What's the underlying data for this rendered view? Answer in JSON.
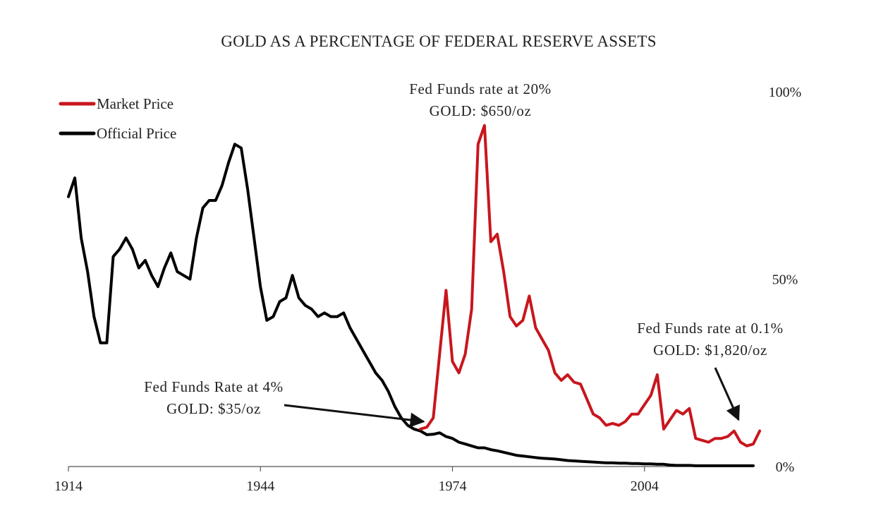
{
  "chart_data": {
    "type": "line",
    "title": "GOLD AS A PERCENTAGE OF FEDERAL RESERVE ASSETS",
    "xlim": [
      1914,
      2021
    ],
    "ylim": [
      0,
      100
    ],
    "x_ticks": [
      1914,
      1944,
      1974,
      2004
    ],
    "x_tick_labels": [
      "1914",
      "1944",
      "1974",
      "2004"
    ],
    "y_ticks": [
      0,
      50,
      100
    ],
    "y_tick_labels": [
      "0%",
      "50%",
      "100%"
    ],
    "y_axis_side": "right",
    "grid": false,
    "legend_position": "top-left",
    "series": [
      {
        "name": "Official Price",
        "color": "#000000",
        "points": [
          [
            1914,
            72
          ],
          [
            1915,
            77
          ],
          [
            1916,
            61
          ],
          [
            1917,
            52
          ],
          [
            1918,
            40
          ],
          [
            1919,
            33
          ],
          [
            1920,
            33
          ],
          [
            1921,
            56
          ],
          [
            1922,
            58
          ],
          [
            1923,
            61
          ],
          [
            1924,
            58
          ],
          [
            1925,
            53
          ],
          [
            1926,
            55
          ],
          [
            1927,
            51
          ],
          [
            1928,
            48
          ],
          [
            1929,
            53
          ],
          [
            1930,
            57
          ],
          [
            1931,
            52
          ],
          [
            1932,
            51
          ],
          [
            1933,
            50
          ],
          [
            1934,
            61
          ],
          [
            1935,
            69
          ],
          [
            1936,
            71
          ],
          [
            1937,
            71
          ],
          [
            1938,
            75
          ],
          [
            1939,
            81
          ],
          [
            1940,
            86
          ],
          [
            1941,
            85
          ],
          [
            1942,
            74
          ],
          [
            1943,
            61
          ],
          [
            1944,
            48
          ],
          [
            1945,
            39
          ],
          [
            1946,
            40
          ],
          [
            1947,
            44
          ],
          [
            1948,
            45
          ],
          [
            1949,
            51
          ],
          [
            1950,
            45
          ],
          [
            1951,
            43
          ],
          [
            1952,
            42
          ],
          [
            1953,
            40
          ],
          [
            1954,
            41
          ],
          [
            1955,
            40
          ],
          [
            1956,
            40
          ],
          [
            1957,
            41
          ],
          [
            1958,
            37
          ],
          [
            1959,
            34
          ],
          [
            1960,
            31
          ],
          [
            1961,
            28
          ],
          [
            1962,
            25
          ],
          [
            1963,
            23
          ],
          [
            1964,
            20
          ],
          [
            1965,
            16
          ],
          [
            1966,
            13
          ],
          [
            1967,
            11
          ],
          [
            1968,
            10
          ],
          [
            1969,
            9.5
          ],
          [
            1970,
            8.5
          ],
          [
            1971,
            8.6
          ],
          [
            1972,
            9
          ],
          [
            1973,
            8
          ],
          [
            1974,
            7.5
          ],
          [
            1975,
            6.5
          ],
          [
            1976,
            6
          ],
          [
            1977,
            5.5
          ],
          [
            1978,
            5
          ],
          [
            1979,
            5
          ],
          [
            1980,
            4.5
          ],
          [
            1981,
            4.2
          ],
          [
            1982,
            3.8
          ],
          [
            1983,
            3.4
          ],
          [
            1984,
            3.0
          ],
          [
            1985,
            2.8
          ],
          [
            1986,
            2.6
          ],
          [
            1987,
            2.4
          ],
          [
            1988,
            2.2
          ],
          [
            1989,
            2.1
          ],
          [
            1990,
            2.0
          ],
          [
            1991,
            1.8
          ],
          [
            1992,
            1.6
          ],
          [
            1993,
            1.5
          ],
          [
            1994,
            1.4
          ],
          [
            1995,
            1.3
          ],
          [
            1996,
            1.2
          ],
          [
            1997,
            1.1
          ],
          [
            1998,
            1.0
          ],
          [
            1999,
            1.0
          ],
          [
            2000,
            0.9
          ],
          [
            2001,
            0.9
          ],
          [
            2002,
            0.8
          ],
          [
            2003,
            0.8
          ],
          [
            2004,
            0.7
          ],
          [
            2005,
            0.7
          ],
          [
            2006,
            0.6
          ],
          [
            2007,
            0.6
          ],
          [
            2008,
            0.4
          ],
          [
            2009,
            0.3
          ],
          [
            2010,
            0.3
          ],
          [
            2011,
            0.3
          ],
          [
            2012,
            0.2
          ],
          [
            2013,
            0.2
          ],
          [
            2014,
            0.2
          ],
          [
            2015,
            0.2
          ],
          [
            2016,
            0.2
          ],
          [
            2017,
            0.2
          ],
          [
            2018,
            0.2
          ],
          [
            2019,
            0.2
          ],
          [
            2020,
            0.2
          ],
          [
            2021,
            0.2
          ]
        ]
      },
      {
        "name": "Market Price",
        "color": "#c8161d",
        "points": [
          [
            1969,
            10
          ],
          [
            1970,
            10.5
          ],
          [
            1971,
            13
          ],
          [
            1972,
            30
          ],
          [
            1973,
            47
          ],
          [
            1974,
            28
          ],
          [
            1975,
            25
          ],
          [
            1976,
            30
          ],
          [
            1977,
            42
          ],
          [
            1978,
            86
          ],
          [
            1979,
            91
          ],
          [
            1980,
            60
          ],
          [
            1981,
            62
          ],
          [
            1982,
            52
          ],
          [
            1983,
            40
          ],
          [
            1984,
            37.5
          ],
          [
            1985,
            39
          ],
          [
            1986,
            45.5
          ],
          [
            1987,
            37
          ],
          [
            1988,
            34
          ],
          [
            1989,
            31
          ],
          [
            1990,
            25
          ],
          [
            1991,
            23
          ],
          [
            1992,
            24.5
          ],
          [
            1993,
            22.5
          ],
          [
            1994,
            22
          ],
          [
            1995,
            18
          ],
          [
            1996,
            14
          ],
          [
            1997,
            13
          ],
          [
            1998,
            11
          ],
          [
            1999,
            11.5
          ],
          [
            2000,
            11
          ],
          [
            2001,
            12
          ],
          [
            2002,
            14
          ],
          [
            2003,
            14
          ],
          [
            2004,
            16.5
          ],
          [
            2005,
            19
          ],
          [
            2006,
            24.5
          ],
          [
            2007,
            10
          ],
          [
            2008,
            12.5
          ],
          [
            2009,
            15
          ],
          [
            2010,
            14
          ],
          [
            2011,
            15.5
          ],
          [
            2012,
            7.5
          ],
          [
            2013,
            7
          ],
          [
            2014,
            6.5
          ],
          [
            2015,
            7.5
          ],
          [
            2016,
            7.5
          ],
          [
            2017,
            8
          ],
          [
            2018,
            9.5
          ],
          [
            2019,
            6.5
          ],
          [
            2020,
            5.5
          ],
          [
            2021,
            6
          ],
          [
            2022,
            9.5
          ]
        ]
      }
    ],
    "legend": [
      {
        "label": "Market Price",
        "color": "#c8161d"
      },
      {
        "label": "Official Price",
        "color": "#000000"
      }
    ],
    "annotations": [
      {
        "lines": [
          "Fed Funds rate at 20%",
          "GOLD: $650/oz"
        ]
      },
      {
        "lines": [
          "Fed Funds Rate at 4%",
          "GOLD: $35/oz"
        ],
        "arrow_target": [
          1969.5,
          12
        ]
      },
      {
        "lines": [
          "Fed Funds rate at 0.1%",
          "GOLD: $1,820/oz"
        ],
        "arrow_target": [
          2018.7,
          12.5
        ]
      }
    ]
  }
}
